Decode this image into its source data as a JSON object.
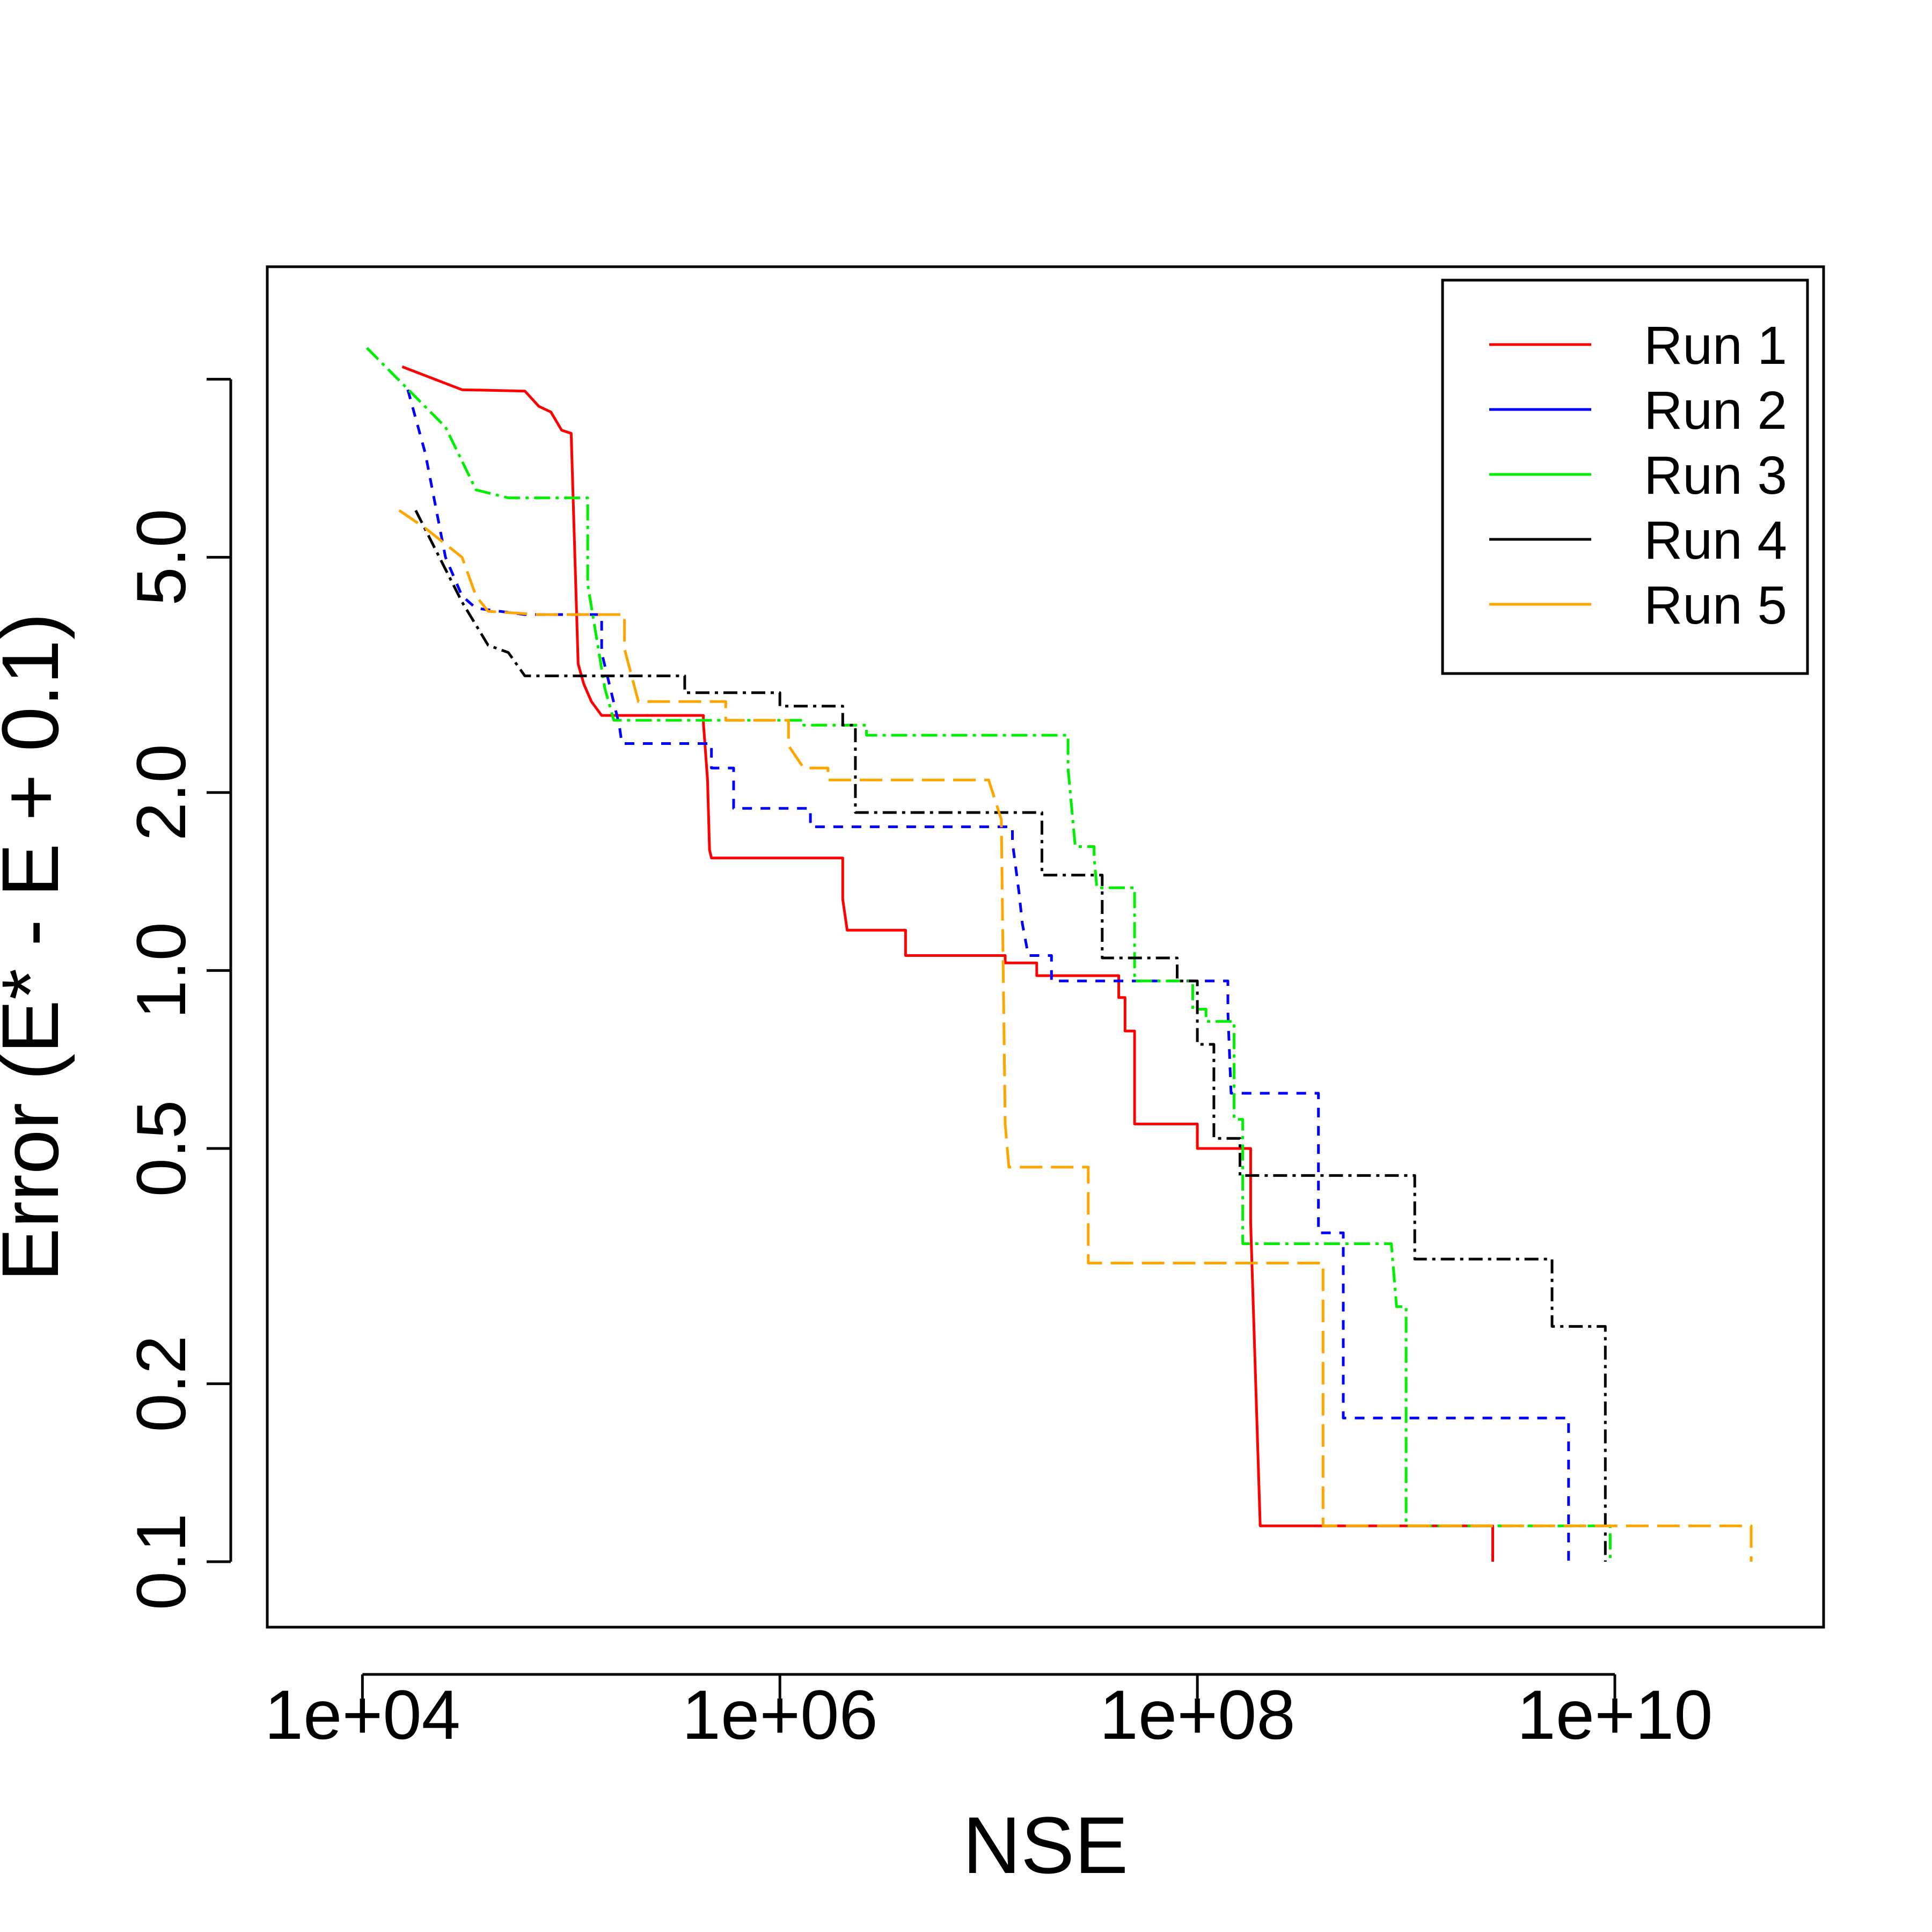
{
  "chart_data": {
    "type": "line",
    "title": "",
    "xlabel": "NSE",
    "ylabel": "Error (E* - E + 0.1)",
    "x_scale": "log10",
    "y_scale": "log10",
    "xlim": [
      3500,
      100000000000
    ],
    "ylim": [
      0.0775,
      15.5
    ],
    "xticks": [
      {
        "value": 10000,
        "label": "1e+04"
      },
      {
        "value": 1000000,
        "label": "1e+06"
      },
      {
        "value": 100000000,
        "label": "1e+08"
      },
      {
        "value": 10000000000,
        "label": "1e+10"
      }
    ],
    "yticks": [
      {
        "value": 0.1,
        "label": "0.1"
      },
      {
        "value": 0.2,
        "label": "0.2"
      },
      {
        "value": 0.5,
        "label": "0.5"
      },
      {
        "value": 1.0,
        "label": "1.0"
      },
      {
        "value": 2.0,
        "label": "2.0"
      },
      {
        "value": 5.0,
        "label": "5.0"
      },
      {
        "value": 10.0,
        "label": ""
      }
    ],
    "legend_position": "top-right",
    "series": [
      {
        "name": "Run 1",
        "color": "#ff0000",
        "dash": "solid",
        "points": [
          [
            15500,
            10.5
          ],
          [
            30000,
            9.6
          ],
          [
            60000,
            9.55
          ],
          [
            70000,
            9.0
          ],
          [
            80000,
            8.8
          ],
          [
            90000,
            8.2
          ],
          [
            100000,
            8.1
          ],
          [
            108000,
            3.3
          ],
          [
            115000,
            3.05
          ],
          [
            125000,
            2.85
          ],
          [
            140000,
            2.7
          ],
          [
            430000,
            2.7
          ],
          [
            430000,
            2.62
          ],
          [
            450000,
            2.1
          ],
          [
            460000,
            1.6
          ],
          [
            470000,
            1.55
          ],
          [
            2000000,
            1.55
          ],
          [
            2000000,
            1.32
          ],
          [
            2100000,
            1.17
          ],
          [
            4000000,
            1.17
          ],
          [
            4000000,
            1.06
          ],
          [
            12000000,
            1.06
          ],
          [
            12000000,
            1.03
          ],
          [
            17000000,
            1.03
          ],
          [
            17000000,
            0.98
          ],
          [
            42000000,
            0.98
          ],
          [
            42000000,
            0.9
          ],
          [
            45000000,
            0.9
          ],
          [
            45000000,
            0.79
          ],
          [
            50000000,
            0.79
          ],
          [
            50000000,
            0.55
          ],
          [
            100000000,
            0.55
          ],
          [
            100000000,
            0.5
          ],
          [
            180000000,
            0.5
          ],
          [
            180000000,
            0.375
          ],
          [
            200000000,
            0.115
          ],
          [
            2600000000,
            0.115
          ],
          [
            2600000000,
            0.1
          ]
        ]
      },
      {
        "name": "Run 2",
        "color": "#0000ff",
        "dash": "18 16",
        "points": [
          [
            16500,
            9.6
          ],
          [
            20000,
            7.5
          ],
          [
            25000,
            5.0
          ],
          [
            30000,
            4.3
          ],
          [
            35000,
            4.1
          ],
          [
            60000,
            4.0
          ],
          [
            140000,
            4.0
          ],
          [
            140000,
            3.45
          ],
          [
            170000,
            2.6
          ],
          [
            175000,
            2.42
          ],
          [
            470000,
            2.42
          ],
          [
            470000,
            2.2
          ],
          [
            600000,
            2.2
          ],
          [
            600000,
            1.88
          ],
          [
            1400000,
            1.88
          ],
          [
            1400000,
            1.75
          ],
          [
            13000000,
            1.75
          ],
          [
            13000000,
            1.65
          ],
          [
            14000000,
            1.35
          ],
          [
            14500000,
            1.2
          ],
          [
            15500000,
            1.06
          ],
          [
            20000000,
            1.06
          ],
          [
            20000000,
            0.96
          ],
          [
            140000000,
            0.96
          ],
          [
            140000000,
            0.85
          ],
          [
            145000000,
            0.62
          ],
          [
            380000000,
            0.62
          ],
          [
            380000000,
            0.36
          ],
          [
            500000000,
            0.36
          ],
          [
            500000000,
            0.175
          ],
          [
            6000000000,
            0.175
          ],
          [
            6000000000,
            0.1
          ]
        ]
      },
      {
        "name": "Run 3",
        "color": "#00ee00",
        "dash": "30 10 6 10",
        "points": [
          [
            10500,
            11.3
          ],
          [
            25000,
            8.3
          ],
          [
            35000,
            6.5
          ],
          [
            50000,
            6.3
          ],
          [
            120000,
            6.3
          ],
          [
            120000,
            4.5
          ],
          [
            145000,
            3.0
          ],
          [
            160000,
            2.65
          ],
          [
            1300000,
            2.65
          ],
          [
            1300000,
            2.6
          ],
          [
            2600000,
            2.6
          ],
          [
            2600000,
            2.5
          ],
          [
            24000000,
            2.5
          ],
          [
            24000000,
            2.2
          ],
          [
            26000000,
            1.62
          ],
          [
            32000000,
            1.62
          ],
          [
            32000000,
            1.55
          ],
          [
            33000000,
            1.38
          ],
          [
            50000000,
            1.38
          ],
          [
            50000000,
            0.96
          ],
          [
            95000000,
            0.96
          ],
          [
            95000000,
            0.86
          ],
          [
            110000000,
            0.86
          ],
          [
            110000000,
            0.82
          ],
          [
            150000000,
            0.82
          ],
          [
            150000000,
            0.56
          ],
          [
            165000000,
            0.56
          ],
          [
            165000000,
            0.345
          ],
          [
            850000000,
            0.345
          ],
          [
            900000000,
            0.27
          ],
          [
            1000000000,
            0.27
          ],
          [
            1000000000,
            0.115
          ],
          [
            9500000000,
            0.115
          ],
          [
            9500000000,
            0.1
          ]
        ]
      },
      {
        "name": "Run 4",
        "color": "#000000",
        "dash": "26 10 6 10",
        "points": [
          [
            18000,
            6.0
          ],
          [
            30000,
            4.2
          ],
          [
            40000,
            3.55
          ],
          [
            50000,
            3.45
          ],
          [
            60000,
            3.15
          ],
          [
            350000,
            3.15
          ],
          [
            350000,
            2.95
          ],
          [
            1000000,
            2.95
          ],
          [
            1000000,
            2.8
          ],
          [
            2000000,
            2.8
          ],
          [
            2000000,
            2.6
          ],
          [
            2300000,
            2.6
          ],
          [
            2300000,
            1.85
          ],
          [
            18000000,
            1.85
          ],
          [
            18000000,
            1.45
          ],
          [
            35000000,
            1.45
          ],
          [
            35000000,
            1.05
          ],
          [
            80000000,
            1.05
          ],
          [
            80000000,
            0.96
          ],
          [
            100000000,
            0.96
          ],
          [
            100000000,
            0.75
          ],
          [
            120000000,
            0.75
          ],
          [
            120000000,
            0.52
          ],
          [
            160000000,
            0.52
          ],
          [
            160000000,
            0.45
          ],
          [
            1100000000,
            0.45
          ],
          [
            1100000000,
            0.325
          ],
          [
            5000000000,
            0.325
          ],
          [
            5000000000,
            0.25
          ],
          [
            9000000000,
            0.25
          ],
          [
            9000000000,
            0.1
          ]
        ]
      },
      {
        "name": "Run 5",
        "color": "#ffa500",
        "dash": "42 16",
        "points": [
          [
            15000,
            6.0
          ],
          [
            20000,
            5.6
          ],
          [
            30000,
            5.0
          ],
          [
            35000,
            4.3
          ],
          [
            40000,
            4.05
          ],
          [
            70000,
            4.0
          ],
          [
            180000,
            4.0
          ],
          [
            180000,
            3.5
          ],
          [
            210000,
            2.85
          ],
          [
            550000,
            2.85
          ],
          [
            550000,
            2.65
          ],
          [
            1100000,
            2.65
          ],
          [
            1100000,
            2.4
          ],
          [
            1300000,
            2.2
          ],
          [
            1700000,
            2.2
          ],
          [
            1700000,
            2.1
          ],
          [
            10000000,
            2.1
          ],
          [
            11500000,
            1.8
          ],
          [
            12000000,
            0.55
          ],
          [
            12500000,
            0.465
          ],
          [
            30000000,
            0.465
          ],
          [
            30000000,
            0.32
          ],
          [
            400000000,
            0.32
          ],
          [
            400000000,
            0.115
          ],
          [
            45000000000,
            0.115
          ],
          [
            45000000000,
            0.1
          ]
        ]
      }
    ]
  }
}
